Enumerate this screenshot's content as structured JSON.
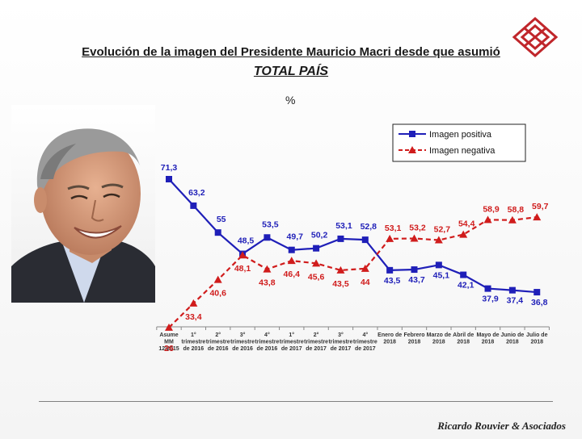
{
  "title": "Evolución de la imagen del Presidente Mauricio Macri desde que asumió",
  "subtitle": "TOTAL PAÍS",
  "unit": "%",
  "footer": "Ricardo Rouvier & Asociados",
  "colors": {
    "positive": "#1f1fb8",
    "negative": "#d01c1c",
    "logo": "#c0262b"
  },
  "chart_data": {
    "type": "line",
    "title": "Evolución de la imagen del Presidente Mauricio Macri desde que asumió",
    "subtitle": "TOTAL PAÍS",
    "ylabel": "%",
    "ylim": [
      20,
      75
    ],
    "grid": false,
    "legend_position": "top-right",
    "categories": [
      [
        "Asume",
        "MM",
        "12/2015"
      ],
      [
        "1°",
        "trimestre",
        "de 2016"
      ],
      [
        "2°",
        "trimestre",
        "de 2016"
      ],
      [
        "3°",
        "trimestre",
        "de 2016"
      ],
      [
        "4°",
        "trimestre",
        "de 2016"
      ],
      [
        "1°",
        "trimestre",
        "de 2017"
      ],
      [
        "2°",
        "trimestre",
        "de 2017"
      ],
      [
        "3°",
        "trimestre",
        "de 2017"
      ],
      [
        "4°",
        "trimestre",
        "de 2017"
      ],
      [
        "Enero de",
        "2018"
      ],
      [
        "Febrero",
        "2018"
      ],
      [
        "Marzo de",
        "2018"
      ],
      [
        "Abril de",
        "2018"
      ],
      [
        "Mayo de",
        "2018"
      ],
      [
        "Junio de",
        "2018"
      ],
      [
        "Julio de",
        "2018"
      ]
    ],
    "series": [
      {
        "name": "Imagen positiva",
        "color": "#1f1fb8",
        "marker": "square",
        "line": "solid",
        "values": [
          71.3,
          63.2,
          55,
          48.5,
          53.5,
          49.7,
          50.2,
          53.1,
          52.8,
          43.5,
          43.7,
          45.1,
          42.1,
          37.9,
          37.4,
          36.8
        ],
        "labels": [
          "71,3",
          "63,2",
          "55",
          "48,5",
          "53,5",
          "49,7",
          "50,2",
          "53,1",
          "52,8",
          "43,5",
          "43,7",
          "45,1",
          "42,1",
          "37,9",
          "37,4",
          "36,8"
        ]
      },
      {
        "name": "Imagen negativa",
        "color": "#d01c1c",
        "marker": "triangle",
        "line": "dashed",
        "values": [
          26,
          33.4,
          40.6,
          48.1,
          43.8,
          46.4,
          45.6,
          43.5,
          44,
          53.1,
          53.2,
          52.7,
          54.4,
          58.9,
          58.8,
          59.7
        ],
        "labels": [
          "26",
          "33,4",
          "40,6",
          "48,1",
          "43,8",
          "46,4",
          "45,6",
          "43,5",
          "44",
          "53,1",
          "53,2",
          "52,7",
          "54,4",
          "58,9",
          "58,8",
          "59,7"
        ]
      }
    ]
  }
}
